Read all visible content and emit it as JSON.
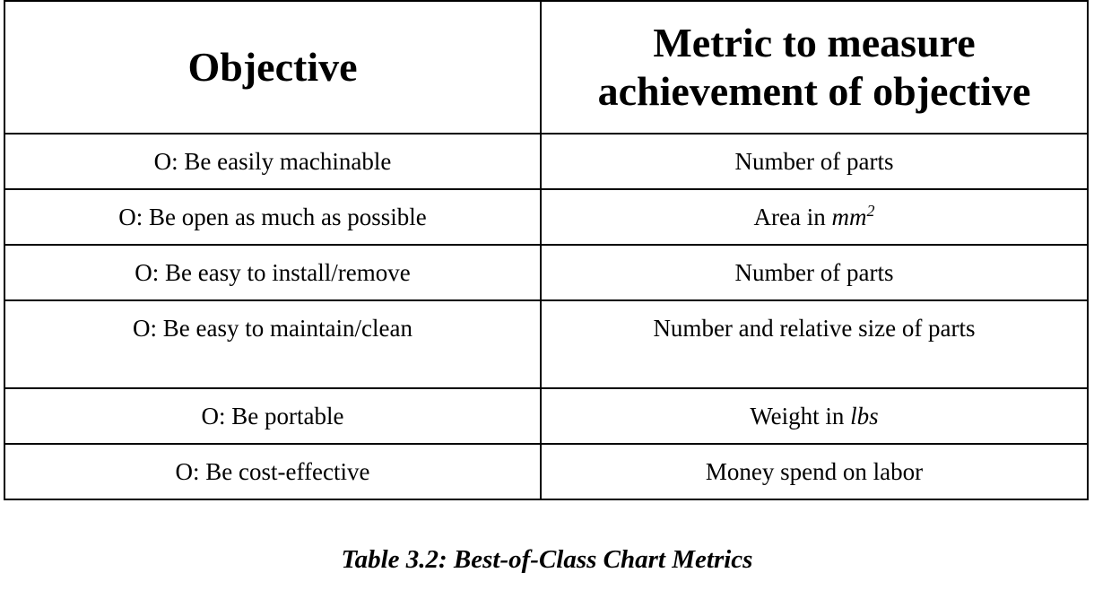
{
  "table": {
    "headers": {
      "objective": "Objective",
      "metric_line1": "Metric to measure",
      "metric_line2": "achievement of objective"
    },
    "rows": [
      {
        "objective": "O: Be easily machinable",
        "metric": "Number of parts"
      },
      {
        "objective": "O: Be open as much as possible",
        "metric_prefix": "Area in ",
        "metric_unit": "mm",
        "metric_exponent": "2"
      },
      {
        "objective": "O: Be easy to install/remove",
        "metric": "Number of parts"
      },
      {
        "objective": "O: Be easy to maintain/clean",
        "metric": "Number and relative size of parts"
      },
      {
        "objective": "O: Be portable",
        "metric_prefix": "Weight in ",
        "metric_unit": "lbs"
      },
      {
        "objective": "O: Be cost-effective",
        "metric": "Money spend on labor"
      }
    ]
  },
  "caption": "Table 3.2: Best-of-Class Chart Metrics"
}
